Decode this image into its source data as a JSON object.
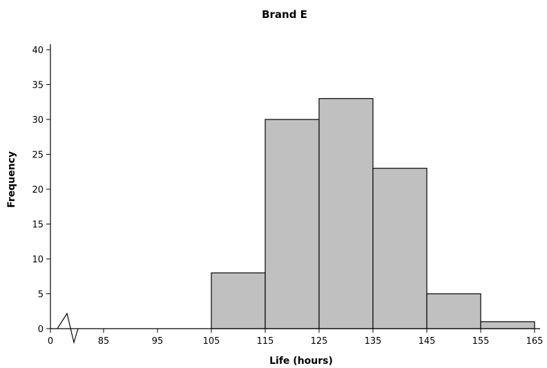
{
  "chart_data": {
    "type": "bar",
    "title": "Brand E",
    "xlabel": "Life (hours)",
    "ylabel": "Frequency",
    "x_break": true,
    "x_first_tick": "0",
    "bins": [
      {
        "from": 85,
        "to": 95,
        "value": 0
      },
      {
        "from": 95,
        "to": 105,
        "value": 0
      },
      {
        "from": 105,
        "to": 115,
        "value": 8
      },
      {
        "from": 115,
        "to": 125,
        "value": 30
      },
      {
        "from": 125,
        "to": 135,
        "value": 33
      },
      {
        "from": 135,
        "to": 145,
        "value": 23
      },
      {
        "from": 145,
        "to": 155,
        "value": 5
      },
      {
        "from": 155,
        "to": 165,
        "value": 1
      }
    ],
    "x_ticks": [
      "85",
      "95",
      "105",
      "115",
      "125",
      "135",
      "145",
      "155",
      "165"
    ],
    "y_ticks": [
      "0",
      "5",
      "10",
      "15",
      "20",
      "25",
      "30",
      "35",
      "40"
    ],
    "ylim": [
      0,
      40
    ],
    "bar_color": "#c0c0c0",
    "grid": false
  }
}
